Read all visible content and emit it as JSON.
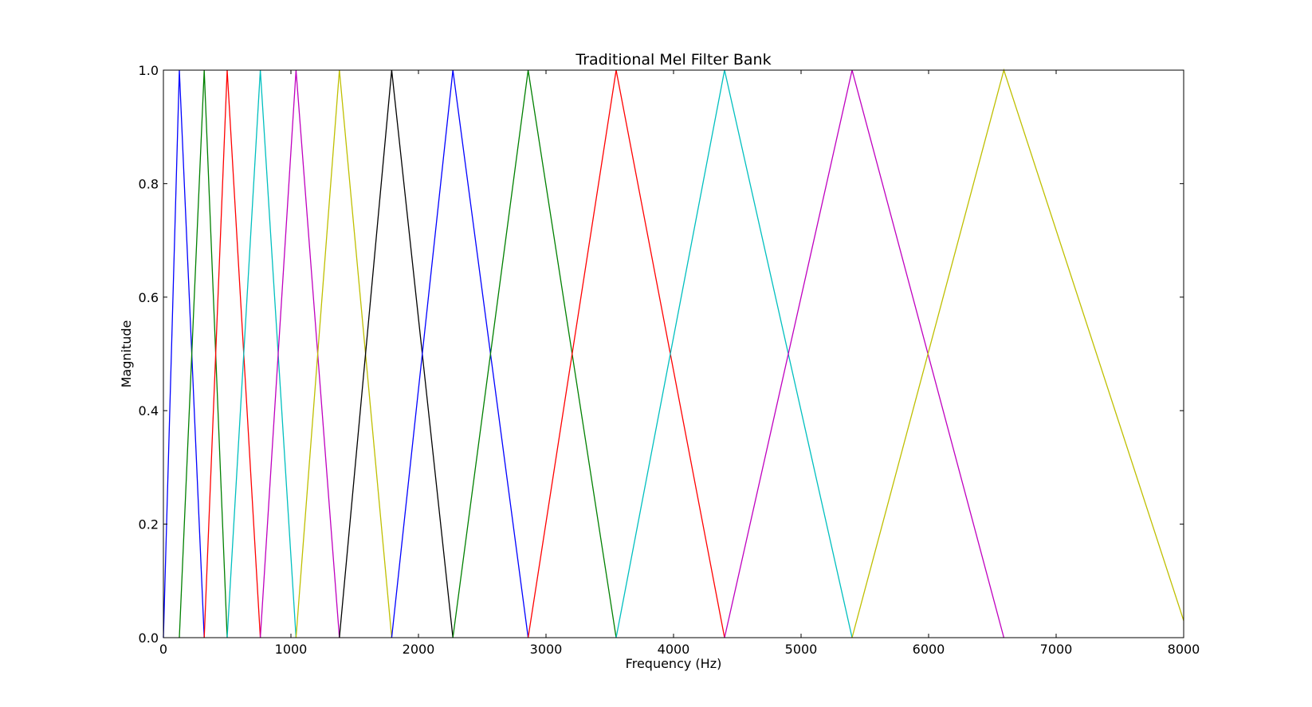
{
  "chart_data": {
    "type": "line",
    "title": "Traditional Mel Filter Bank",
    "xlabel": "Frequency (Hz)",
    "ylabel": "Magnitude",
    "xlim": [
      0,
      8000
    ],
    "ylim": [
      0,
      1.0
    ],
    "grid": false,
    "legend": "none",
    "xticks": [
      0,
      1000,
      2000,
      3000,
      4000,
      5000,
      6000,
      7000,
      8000
    ],
    "xtick_labels": [
      "0",
      "1000",
      "2000",
      "3000",
      "4000",
      "5000",
      "6000",
      "7000",
      "8000"
    ],
    "yticks": [
      0.0,
      0.2,
      0.4,
      0.6,
      0.8,
      1.0
    ],
    "ytick_labels": [
      "0.0",
      "0.2",
      "0.4",
      "0.6",
      "0.8",
      "1.0"
    ],
    "series": [
      {
        "color": "#0000ff",
        "x": [
          0,
          125,
          320
        ],
        "y": [
          0,
          1,
          0
        ]
      },
      {
        "color": "#008000",
        "x": [
          125,
          320,
          500
        ],
        "y": [
          0,
          1,
          0
        ]
      },
      {
        "color": "#ff0000",
        "x": [
          320,
          500,
          760
        ],
        "y": [
          0,
          1,
          0
        ]
      },
      {
        "color": "#00bfbf",
        "x": [
          500,
          760,
          1040
        ],
        "y": [
          0,
          1,
          0
        ]
      },
      {
        "color": "#bf00bf",
        "x": [
          760,
          1040,
          1380
        ],
        "y": [
          0,
          1,
          0
        ]
      },
      {
        "color": "#bfbf00",
        "x": [
          1040,
          1380,
          1790
        ],
        "y": [
          0,
          1,
          0
        ]
      },
      {
        "color": "#000000",
        "x": [
          1380,
          1790,
          2270
        ],
        "y": [
          0,
          1,
          0
        ]
      },
      {
        "color": "#0000ff",
        "x": [
          1790,
          2270,
          2860
        ],
        "y": [
          0,
          1,
          0
        ]
      },
      {
        "color": "#008000",
        "x": [
          2270,
          2860,
          3550
        ],
        "y": [
          0,
          1,
          0
        ]
      },
      {
        "color": "#ff0000",
        "x": [
          2860,
          3550,
          4400
        ],
        "y": [
          0,
          1,
          0
        ]
      },
      {
        "color": "#00bfbf",
        "x": [
          3550,
          4400,
          5400
        ],
        "y": [
          0,
          1,
          0
        ]
      },
      {
        "color": "#bf00bf",
        "x": [
          4400,
          5400,
          6590
        ],
        "y": [
          0,
          1,
          0
        ]
      },
      {
        "color": "#bfbf00",
        "x": [
          5400,
          6590,
          8000
        ],
        "y": [
          0,
          1,
          0.03
        ]
      }
    ]
  }
}
